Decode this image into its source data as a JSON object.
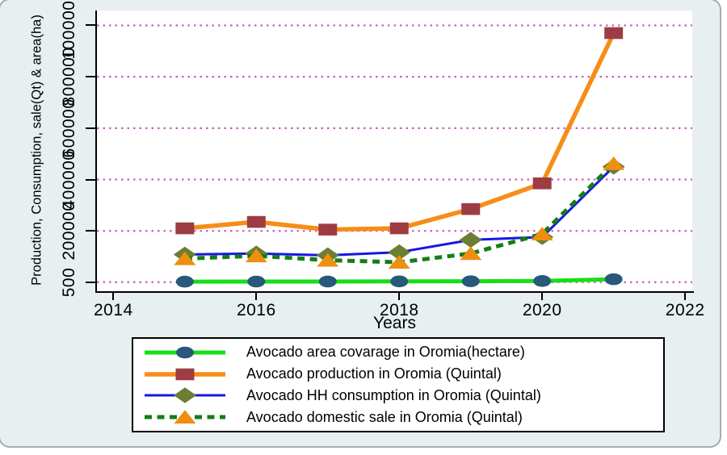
{
  "chart_data": {
    "type": "line",
    "title": "",
    "xlabel": "Years",
    "ylabel": "Production, Consumption, sale(Qt) & area(ha)",
    "x": [
      2015,
      2016,
      2017,
      2018,
      2019,
      2020,
      2021
    ],
    "xticks": [
      2014,
      2016,
      2018,
      2020,
      2022
    ],
    "yticks": [
      500,
      200000,
      400000,
      600000,
      800000,
      1000000
    ],
    "xlim": [
      2013.77,
      2022.1
    ],
    "ylim": [
      -38000,
      1058000
    ],
    "grid": "horizontal-dotted",
    "legend_position": "bottom-center",
    "series": [
      {
        "id": "area-coverage",
        "name": "Avocado area covarage in Oromia(hectare)",
        "values": [
          2500,
          2800,
          3000,
          3500,
          4000,
          5000,
          12000
        ],
        "line_color": "#16df16",
        "line_style": "solid",
        "line_width": 5,
        "marker": "circle",
        "marker_color": "#28587a"
      },
      {
        "id": "production",
        "name": "Avocado production in Oromia (Quintal)",
        "values": [
          210000,
          235000,
          205000,
          210000,
          285000,
          385000,
          970000
        ],
        "line_color": "#f68d17",
        "line_style": "solid",
        "line_width": 5.5,
        "marker": "square",
        "marker_color": "#9d3c42"
      },
      {
        "id": "hh-consumption",
        "name": "Avocado HH consumption in Oromia (Quintal)",
        "values": [
          108000,
          112000,
          105000,
          117000,
          165000,
          176000,
          450000
        ],
        "line_color": "#1616e6",
        "line_style": "solid",
        "line_width": 3,
        "marker": "diamond",
        "marker_color": "#6d7d34"
      },
      {
        "id": "domestic-sale",
        "name": "Avocado domestic sale in Oromia (Quintal)",
        "values": [
          92000,
          103000,
          86000,
          78000,
          112000,
          188000,
          462000
        ],
        "line_color": "#157d15",
        "line_style": "dashed",
        "line_width": 5,
        "marker": "triangle",
        "marker_color": "#ee8f10"
      }
    ],
    "colors": {
      "gridline": "#c263c2",
      "canvas_background": "#e7eff1",
      "plot_background": "#ffffff",
      "axis": "#000000",
      "legend_border": "#000000",
      "text": "#000000"
    }
  }
}
